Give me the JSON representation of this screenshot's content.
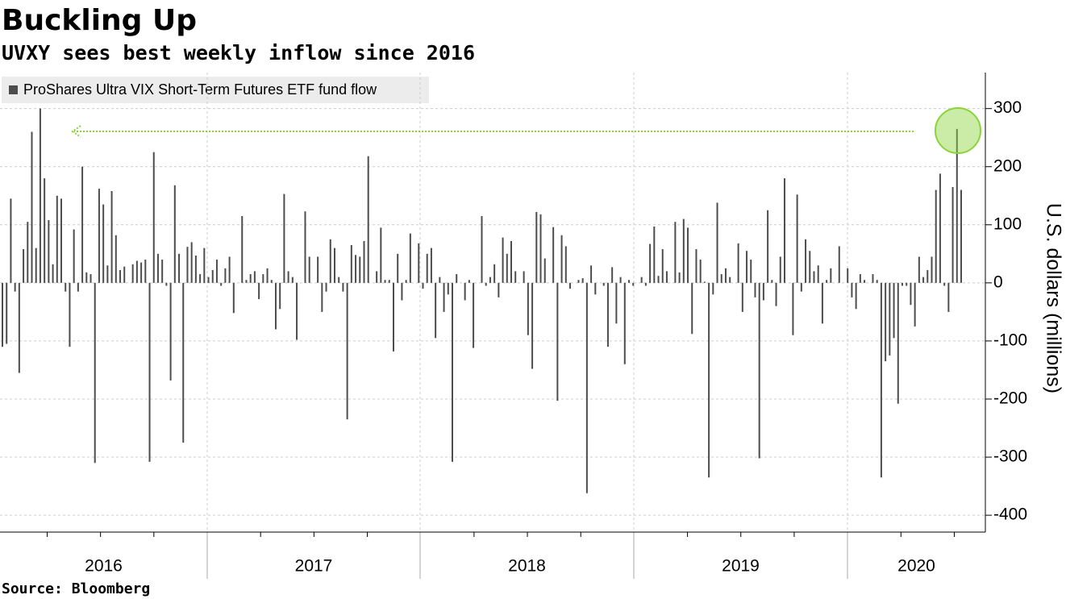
{
  "chart_data": {
    "type": "bar",
    "title": "Buckling Up",
    "subtitle": "UVXY sees best weekly inflow since 2016",
    "source": "Source: Bloomberg",
    "y_label": "U.S. dollars (millions)",
    "series": [
      {
        "name": "ProShares Ultra VIX Short-Term Futures ETF fund flow",
        "color": "#4d4d4d",
        "values": [
          -110,
          -105,
          145,
          -15,
          -155,
          58,
          105,
          260,
          60,
          300,
          180,
          108,
          32,
          150,
          145,
          -15,
          -110,
          92,
          -15,
          200,
          18,
          15,
          -310,
          162,
          135,
          30,
          158,
          82,
          22,
          28,
          0,
          32,
          38,
          35,
          40,
          -308,
          225,
          50,
          40,
          -5,
          -168,
          168,
          50,
          -275,
          62,
          70,
          47,
          15,
          60,
          10,
          22,
          40,
          -5,
          25,
          45,
          -52,
          0,
          115,
          5,
          15,
          20,
          -28,
          15,
          25,
          5,
          -80,
          -45,
          153,
          20,
          10,
          -98,
          0,
          123,
          45,
          0,
          45,
          -50,
          -15,
          75,
          60,
          10,
          -15,
          -235,
          65,
          48,
          45,
          72,
          218,
          0,
          20,
          95,
          5,
          5,
          -118,
          50,
          -30,
          5,
          85,
          0,
          68,
          -10,
          50,
          60,
          -95,
          10,
          -50,
          -20,
          -308,
          15,
          0,
          -30,
          5,
          -112,
          0,
          115,
          -5,
          10,
          32,
          -25,
          78,
          50,
          72,
          20,
          0,
          20,
          -90,
          -148,
          122,
          118,
          42,
          0,
          96,
          -203,
          82,
          63,
          -10,
          0,
          5,
          8,
          -362,
          30,
          -20,
          0,
          -5,
          -110,
          27,
          -70,
          10,
          -140,
          5,
          -5,
          0,
          10,
          -5,
          67,
          97,
          12,
          58,
          20,
          0,
          105,
          18,
          110,
          95,
          -88,
          58,
          40,
          2,
          -335,
          -20,
          138,
          15,
          25,
          10,
          0,
          68,
          -50,
          55,
          40,
          -25,
          -302,
          -30,
          125,
          5,
          -40,
          45,
          180,
          0,
          -90,
          152,
          -15,
          75,
          55,
          20,
          30,
          -70,
          5,
          25,
          0,
          63,
          0,
          25,
          -25,
          -45,
          15,
          5,
          0,
          15,
          5,
          -335,
          -135,
          -125,
          -95,
          -208,
          -5,
          -5,
          -38,
          -75,
          45,
          10,
          22,
          45,
          160,
          188,
          -5,
          -50,
          165,
          265,
          160
        ]
      }
    ],
    "year_labels": [
      "2016",
      "2017",
      "2018",
      "2019",
      "2020"
    ],
    "ylim": [
      -429,
      362
    ],
    "yticks": [
      300,
      200,
      100,
      0,
      -100,
      -200,
      -300,
      -400
    ],
    "grid": true
  }
}
